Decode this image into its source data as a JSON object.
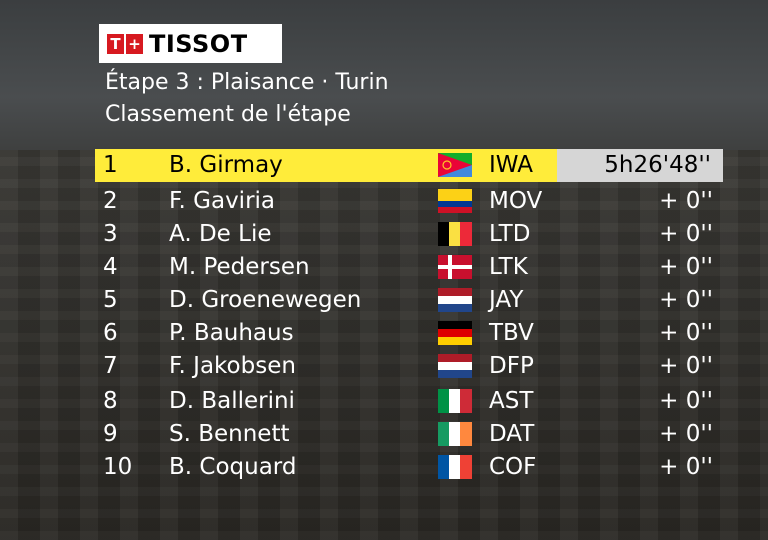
{
  "brand": {
    "logo_text": "TISSOT",
    "mark_letter": "T",
    "mark_plus": "+"
  },
  "stage": {
    "title": "Étape 3 : Plaisance · Turin",
    "subtitle": "Classement de l'étape"
  },
  "results": [
    {
      "rank": "1",
      "name": "B. Girmay",
      "flag": "eritrea-flag-icon",
      "team": "IWA",
      "time": "5h26'48''"
    },
    {
      "rank": "2",
      "name": "F. Gaviria",
      "flag": "colombia-flag-icon",
      "team": "MOV",
      "time": "+ 0''"
    },
    {
      "rank": "3",
      "name": "A. De Lie",
      "flag": "belgium-flag-icon",
      "team": "LTD",
      "time": "+ 0''"
    },
    {
      "rank": "4",
      "name": "M. Pedersen",
      "flag": "denmark-flag-icon",
      "team": "LTK",
      "time": "+ 0''"
    },
    {
      "rank": "5",
      "name": "D. Groenewegen",
      "flag": "netherlands-flag-icon",
      "team": "JAY",
      "time": "+ 0''"
    },
    {
      "rank": "6",
      "name": "P. Bauhaus",
      "flag": "germany-flag-icon",
      "team": "TBV",
      "time": "+ 0''"
    },
    {
      "rank": "7",
      "name": "F. Jakobsen",
      "flag": "netherlands-flag-icon",
      "team": "DFP",
      "time": "+ 0''"
    },
    {
      "rank": "8",
      "name": "D. Ballerini",
      "flag": "italy-flag-icon",
      "team": "AST",
      "time": "+ 0''"
    },
    {
      "rank": "9",
      "name": "S. Bennett",
      "flag": "ireland-flag-icon",
      "team": "DAT",
      "time": "+ 0''"
    },
    {
      "rank": "10",
      "name": "B. Coquard",
      "flag": "france-flag-icon",
      "team": "COF",
      "time": "+ 0''"
    }
  ],
  "colors": {
    "leader_highlight": "#ffec3a",
    "leader_time_box": "#d6d6d6",
    "logo_red": "#d71920"
  }
}
